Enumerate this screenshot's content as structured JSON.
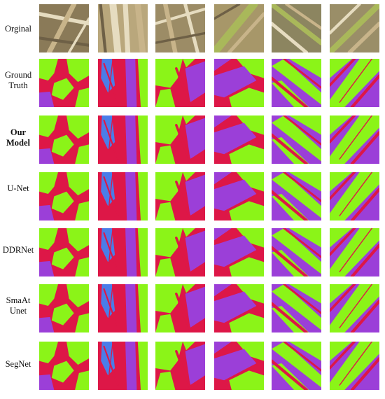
{
  "figure": {
    "colors": {
      "green": "#8BF418",
      "red": "#DD1747",
      "purple": "#9B3FD8",
      "blue": "#4A7DE8",
      "straw": "#C8B48A",
      "straw_light": "#E6DCC0",
      "straw_dark": "#6E6046",
      "stem_green": "#A9B85A"
    },
    "rows": [
      {
        "label": "Orginal",
        "bold": false,
        "kind": "photo"
      },
      {
        "label": "Ground\nTruth",
        "bold": false,
        "kind": "mask"
      },
      {
        "label": "Our\nModel",
        "bold": true,
        "kind": "mask"
      },
      {
        "label": "U-Net",
        "bold": false,
        "kind": "mask"
      },
      {
        "label": "DDRNet",
        "bold": false,
        "kind": "mask"
      },
      {
        "label": "SmaAt\nUnet",
        "bold": false,
        "kind": "mask"
      },
      {
        "label": "SegNet",
        "bold": false,
        "kind": "mask"
      }
    ],
    "columns": [
      {
        "id": "sample-1"
      },
      {
        "id": "sample-2"
      },
      {
        "id": "sample-3"
      },
      {
        "id": "sample-4"
      },
      {
        "id": "sample-5"
      },
      {
        "id": "sample-6"
      }
    ]
  }
}
